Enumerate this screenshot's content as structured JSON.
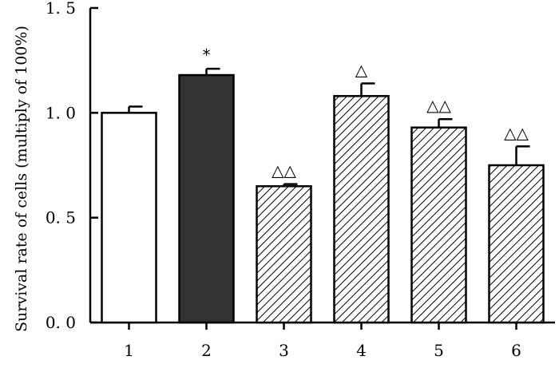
{
  "chart_data": {
    "type": "bar",
    "title": "",
    "xlabel": "",
    "ylabel": "Survival rate of cells (multiply of 100%)",
    "ylim": [
      0,
      1.5
    ],
    "yticks": [
      "0. 0",
      "0. 5",
      "1. 0",
      "1. 5"
    ],
    "categories": [
      "1",
      "2",
      "3",
      "4",
      "5",
      "6"
    ],
    "values": [
      1.0,
      1.18,
      0.65,
      1.08,
      0.93,
      0.75
    ],
    "errors": [
      0.03,
      0.03,
      0.01,
      0.06,
      0.04,
      0.09
    ],
    "annotations": [
      "",
      "*",
      "△△",
      "△",
      "△△",
      "△△"
    ],
    "fills": [
      "white",
      "black",
      "hatch",
      "hatch",
      "hatch",
      "hatch"
    ],
    "colors": {
      "dark_bar": "#333333",
      "stroke": "#000000",
      "background": "#ffffff"
    }
  }
}
